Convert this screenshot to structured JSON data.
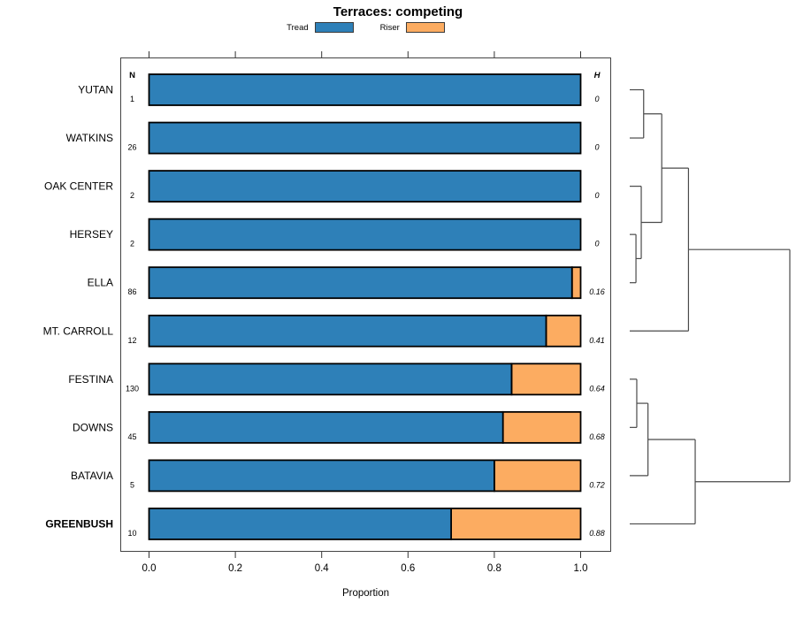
{
  "title": "Terraces: competing",
  "legend": {
    "items": [
      {
        "label": "Tread",
        "color": "#2E80B8"
      },
      {
        "label": "Riser",
        "color": "#FCAC61"
      }
    ]
  },
  "colors": {
    "tread": "#2E80B8",
    "riser": "#FCAC61",
    "bar_border": "#000000",
    "axis": "#333333",
    "dendrogram": "#4A4A4A"
  },
  "chart_data": {
    "type": "bar",
    "orientation": "horizontal",
    "stacked": true,
    "title": "Terraces: competing",
    "xlabel": "Proportion",
    "xlim": [
      0,
      1
    ],
    "x_tick_values": [
      0,
      0.2,
      0.4,
      0.6,
      0.8,
      1.0
    ],
    "x_tick_labels": [
      "0.0",
      "0.2",
      "0.4",
      "0.6",
      "0.8",
      "1.0"
    ],
    "series_names": [
      "Tread",
      "Riser"
    ],
    "n_header": "N",
    "h_header": "H",
    "rows": [
      {
        "label": "YUTAN",
        "n": "1",
        "tread": 1.0,
        "riser": 0.0,
        "h": "0",
        "bold": false
      },
      {
        "label": "WATKINS",
        "n": "26",
        "tread": 1.0,
        "riser": 0.0,
        "h": "0",
        "bold": false
      },
      {
        "label": "OAK CENTER",
        "n": "2",
        "tread": 1.0,
        "riser": 0.0,
        "h": "0",
        "bold": false
      },
      {
        "label": "HERSEY",
        "n": "2",
        "tread": 1.0,
        "riser": 0.0,
        "h": "0",
        "bold": false
      },
      {
        "label": "ELLA",
        "n": "86",
        "tread": 0.98,
        "riser": 0.02,
        "h": "0.16",
        "bold": false
      },
      {
        "label": "MT. CARROLL",
        "n": "12",
        "tread": 0.92,
        "riser": 0.08,
        "h": "0.41",
        "bold": false
      },
      {
        "label": "FESTINA",
        "n": "130",
        "tread": 0.84,
        "riser": 0.16,
        "h": "0.64",
        "bold": false
      },
      {
        "label": "DOWNS",
        "n": "45",
        "tread": 0.82,
        "riser": 0.18,
        "h": "0.68",
        "bold": false
      },
      {
        "label": "BATAVIA",
        "n": "5",
        "tread": 0.8,
        "riser": 0.2,
        "h": "0.72",
        "bold": false
      },
      {
        "label": "GREENBUSH",
        "n": "10",
        "tread": 0.7,
        "riser": 0.3,
        "h": "0.88",
        "bold": true
      }
    ],
    "dendrogram": {
      "legend_position": "right",
      "merges": [
        {
          "id": "m1",
          "a": "YUTAN",
          "b": "WATKINS",
          "h": 0.087
        },
        {
          "id": "m2",
          "a": "HERSEY",
          "b": "ELLA",
          "h": 0.039
        },
        {
          "id": "m3",
          "a": "OAK CENTER",
          "b": "m2",
          "h": 0.072
        },
        {
          "id": "m4",
          "a": "m1",
          "b": "m3",
          "h": 0.2
        },
        {
          "id": "m5",
          "a": "m4",
          "b": "MT. CARROLL",
          "h": 0.367
        },
        {
          "id": "m6",
          "a": "FESTINA",
          "b": "DOWNS",
          "h": 0.044
        },
        {
          "id": "m7",
          "a": "m6",
          "b": "BATAVIA",
          "h": 0.114
        },
        {
          "id": "m8",
          "a": "m7",
          "b": "GREENBUSH",
          "h": 0.409
        },
        {
          "id": "m9",
          "a": "m5",
          "b": "m8",
          "h": 1.0
        }
      ]
    }
  }
}
